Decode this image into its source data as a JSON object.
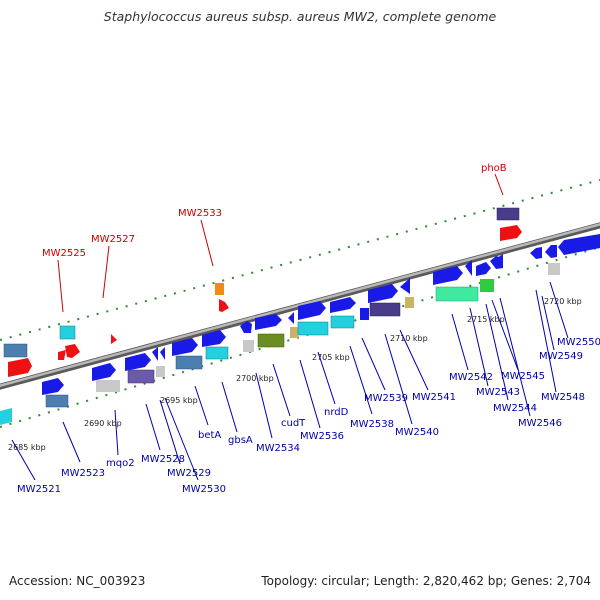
{
  "title": "Staphylococcus aureus subsp. aureus MW2, complete genome",
  "accession": "Accession: NC_003923",
  "topology": "Topology: circular; Length: 2,820,462 bp; Genes: 2,704",
  "colors": {
    "backbone": "#8a8a8a",
    "tick": "#2e8b2e",
    "gene_blue": "#1a1ae6",
    "gene_red": "#ee1111",
    "gene_cyan": "#22d0e0",
    "gene_steel": "#4a7fb0",
    "gene_gray": "#c8c8c8",
    "gene_purple": "#6a5aa8",
    "gene_navy": "#483d8b",
    "gene_olive": "#6b8e23",
    "gene_tan": "#c8b464",
    "gene_orange": "#f08c10",
    "gene_green": "#2ecc40",
    "gene_mint": "#40e8a0",
    "label_red": "#cc0000",
    "label_blue": "#0000aa"
  },
  "scale_labels": [
    "2685 kbp",
    "2690 kbp",
    "2695 kbp",
    "2700 kbp",
    "2705 kbp",
    "2710 kbp",
    "2715 kbp",
    "2720 kbp"
  ],
  "red_labels": [
    "MW2525",
    "MW2527",
    "MW2533",
    "phoB"
  ],
  "blue_labels": [
    "MW2521",
    "MW2523",
    "mqo2",
    "MW2528",
    "MW2529",
    "MW2530",
    "betA",
    "gbsA",
    "MW2534",
    "cudT",
    "MW2536",
    "nrdD",
    "MW2538",
    "MW2539",
    "MW2540",
    "MW2541",
    "MW2542",
    "MW2543",
    "MW2544",
    "MW2545",
    "MW2546",
    "MW2548",
    "MW2549",
    "MW2550"
  ]
}
